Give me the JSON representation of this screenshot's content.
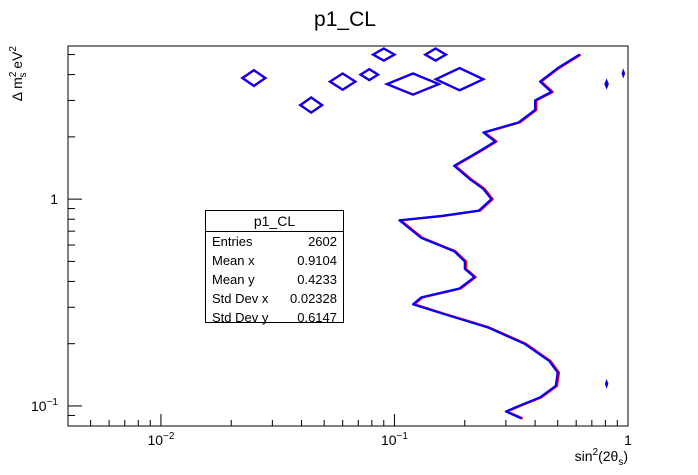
{
  "chart_data": {
    "type": "contour",
    "title": "p1_CL",
    "xlabel": "sin²(2θ_s)",
    "ylabel": "Δ m²_s eV²",
    "x_scale": "log",
    "y_scale": "log",
    "xlim": [
      0.004,
      1.0
    ],
    "ylim": [
      0.08,
      5.5
    ],
    "x_ticks": [
      {
        "value": 0.01,
        "label": "10",
        "exp": "−2"
      },
      {
        "value": 0.1,
        "label": "10",
        "exp": "−1"
      },
      {
        "value": 1.0,
        "label": "1",
        "exp": ""
      }
    ],
    "y_ticks": [
      {
        "value": 0.1,
        "label": "10",
        "exp": "−1"
      },
      {
        "value": 1.0,
        "label": "1",
        "exp": ""
      }
    ],
    "series": [
      {
        "color": "#ff0000",
        "points": [
          [
            0.35,
            0.087
          ],
          [
            0.3,
            0.094
          ],
          [
            0.34,
            0.1
          ],
          [
            0.42,
            0.11
          ],
          [
            0.49,
            0.125
          ],
          [
            0.5,
            0.145
          ],
          [
            0.46,
            0.165
          ],
          [
            0.36,
            0.2
          ],
          [
            0.25,
            0.24
          ],
          [
            0.16,
            0.28
          ],
          [
            0.12,
            0.31
          ],
          [
            0.13,
            0.335
          ],
          [
            0.19,
            0.37
          ],
          [
            0.22,
            0.42
          ],
          [
            0.2,
            0.46
          ],
          [
            0.2,
            0.5
          ],
          [
            0.18,
            0.56
          ],
          [
            0.13,
            0.65
          ],
          [
            0.105,
            0.79
          ],
          [
            0.16,
            0.83
          ],
          [
            0.23,
            0.88
          ],
          [
            0.26,
            1.0
          ],
          [
            0.24,
            1.12
          ],
          [
            0.21,
            1.25
          ],
          [
            0.18,
            1.45
          ],
          [
            0.23,
            1.7
          ],
          [
            0.27,
            1.9
          ],
          [
            0.24,
            2.1
          ],
          [
            0.34,
            2.35
          ],
          [
            0.4,
            2.7
          ],
          [
            0.4,
            3.0
          ],
          [
            0.47,
            3.3
          ],
          [
            0.42,
            3.7
          ],
          [
            0.5,
            4.3
          ],
          [
            0.62,
            5.0
          ]
        ]
      },
      {
        "color": "#0000ff",
        "points": [
          [
            0.35,
            0.087
          ],
          [
            0.3,
            0.094
          ],
          [
            0.34,
            0.1
          ],
          [
            0.42,
            0.11
          ],
          [
            0.49,
            0.125
          ],
          [
            0.5,
            0.145
          ],
          [
            0.46,
            0.165
          ],
          [
            0.36,
            0.2
          ],
          [
            0.25,
            0.24
          ],
          [
            0.16,
            0.28
          ],
          [
            0.12,
            0.31
          ],
          [
            0.13,
            0.335
          ],
          [
            0.19,
            0.37
          ],
          [
            0.22,
            0.42
          ],
          [
            0.2,
            0.46
          ],
          [
            0.2,
            0.5
          ],
          [
            0.18,
            0.56
          ],
          [
            0.13,
            0.65
          ],
          [
            0.105,
            0.79
          ],
          [
            0.16,
            0.83
          ],
          [
            0.23,
            0.88
          ],
          [
            0.26,
            1.0
          ],
          [
            0.24,
            1.12
          ],
          [
            0.21,
            1.25
          ],
          [
            0.18,
            1.45
          ],
          [
            0.23,
            1.7
          ],
          [
            0.27,
            1.9
          ],
          [
            0.24,
            2.1
          ],
          [
            0.34,
            2.35
          ],
          [
            0.4,
            2.7
          ],
          [
            0.4,
            3.0
          ],
          [
            0.47,
            3.3
          ],
          [
            0.42,
            3.7
          ],
          [
            0.5,
            4.3
          ],
          [
            0.62,
            5.0
          ]
        ]
      }
    ],
    "islands": [
      {
        "cx": 0.025,
        "cy": 3.85,
        "rx": 0.003,
        "ry": 0.35
      },
      {
        "cx": 0.044,
        "cy": 2.85,
        "rx": 0.005,
        "ry": 0.25
      },
      {
        "cx": 0.06,
        "cy": 3.7,
        "rx": 0.008,
        "ry": 0.35
      },
      {
        "cx": 0.078,
        "cy": 4.0,
        "rx": 0.007,
        "ry": 0.25
      },
      {
        "cx": 0.09,
        "cy": 5.0,
        "rx": 0.01,
        "ry": 0.35
      },
      {
        "cx": 0.15,
        "cy": 5.0,
        "rx": 0.016,
        "ry": 0.35
      },
      {
        "cx": 0.19,
        "cy": 3.8,
        "rx": 0.05,
        "ry": 0.5
      },
      {
        "cx": 0.12,
        "cy": 3.6,
        "rx": 0.035,
        "ry": 0.45
      },
      {
        "cx": 0.81,
        "cy": 3.6,
        "rx": 0.008,
        "ry": 0.1
      },
      {
        "cx": 0.955,
        "cy": 4.05,
        "rx": 0.005,
        "ry": 0.07
      },
      {
        "cx": 0.81,
        "cy": 0.128,
        "rx": 0.004,
        "ry": 0.002
      }
    ],
    "stats": {
      "title": "p1_CL",
      "rows": [
        {
          "label": "Entries",
          "value": "2602"
        },
        {
          "label": "Mean x",
          "value": "0.9104"
        },
        {
          "label": "Mean y",
          "value": "0.4233"
        },
        {
          "label": "Std Dev x",
          "value": "0.02328"
        },
        {
          "label": "Std Dev y",
          "value": "0.6147"
        }
      ]
    }
  }
}
